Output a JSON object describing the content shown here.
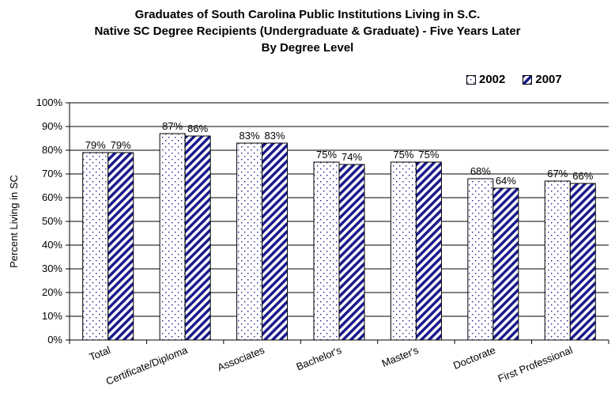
{
  "chart_data": {
    "type": "bar",
    "title_lines": [
      "Graduates of South Carolina Public Institutions Living in S.C.",
      "Native SC Degree Recipients (Undergraduate & Graduate) - Five Years Later",
      "By Degree Level"
    ],
    "ylabel": "Percent Living in SC",
    "xlabel": "",
    "ylim": [
      0,
      100
    ],
    "yticks": [
      "0%",
      "10%",
      "20%",
      "30%",
      "40%",
      "50%",
      "60%",
      "70%",
      "80%",
      "90%",
      "100%"
    ],
    "categories": [
      "Total",
      "Certificate/Diploma",
      "Associates",
      "Bachelor's",
      "Master's",
      "Doctorate",
      "First Professional"
    ],
    "series": [
      {
        "name": "2002",
        "values": [
          79,
          87,
          83,
          75,
          75,
          68,
          67
        ],
        "labels": [
          "79%",
          "87%",
          "83%",
          "75%",
          "75%",
          "68%",
          "67%"
        ],
        "pattern": "dots"
      },
      {
        "name": "2007",
        "values": [
          79,
          86,
          83,
          74,
          75,
          64,
          66
        ],
        "labels": [
          "79%",
          "86%",
          "83%",
          "74%",
          "75%",
          "64%",
          "66%"
        ],
        "pattern": "diagonal-stripes"
      }
    ],
    "grid": true,
    "legend_position": "top-right",
    "colors": {
      "series_2002_dots": "#1a1a8c",
      "series_2007_stripes": "#1a1a8c",
      "background": "#ffffff"
    }
  }
}
